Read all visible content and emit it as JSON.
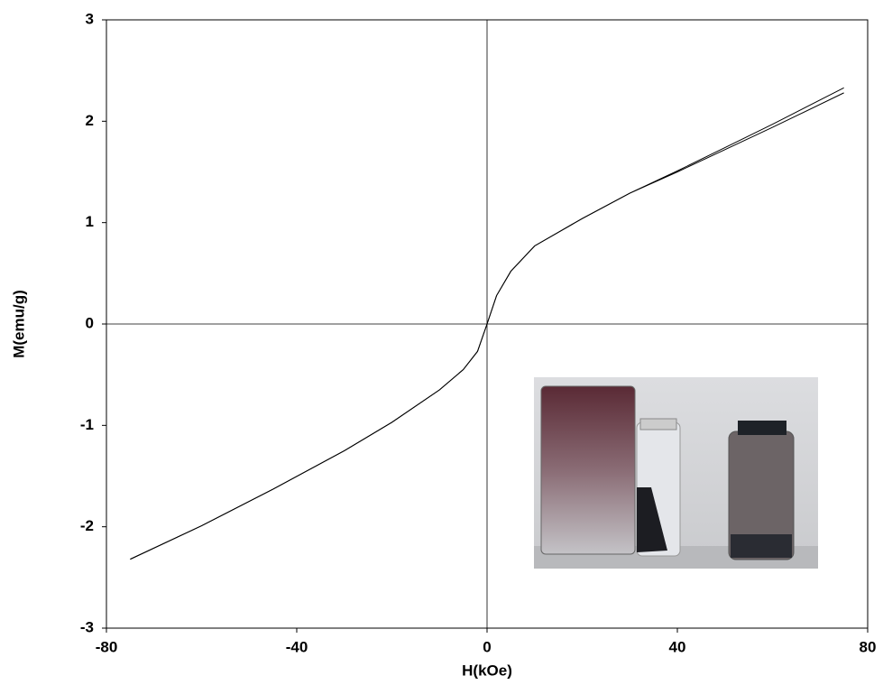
{
  "chart_data": {
    "type": "line",
    "x_label": "H(kOe)",
    "y_label": "M(emu/g)",
    "x": [
      -75,
      -60,
      -45,
      -30,
      -20,
      -10,
      -5,
      -2,
      0,
      2,
      5,
      10,
      20,
      30,
      40,
      50,
      60,
      75
    ],
    "series": [
      {
        "color": "#000000",
        "values": [
          -2.32,
          -1.99,
          -1.63,
          -1.25,
          -0.97,
          -0.65,
          -0.45,
          -0.27,
          0,
          0.28,
          0.52,
          0.77,
          1.04,
          1.29,
          1.5,
          1.72,
          1.94,
          2.28
        ]
      },
      {
        "color": "#000000",
        "values": [
          -2.32,
          -1.99,
          -1.63,
          -1.25,
          -0.97,
          -0.65,
          -0.45,
          -0.27,
          0,
          0.28,
          0.52,
          0.77,
          1.04,
          1.29,
          1.51,
          1.74,
          1.97,
          2.33
        ]
      }
    ],
    "xlim": [
      -80,
      80
    ],
    "ylim": [
      -3,
      3
    ],
    "xticks": [
      -80,
      -40,
      0,
      40,
      80
    ],
    "yticks": [
      -3,
      -2,
      -1,
      0,
      1,
      2,
      3
    ],
    "zero_lines": true
  }
}
